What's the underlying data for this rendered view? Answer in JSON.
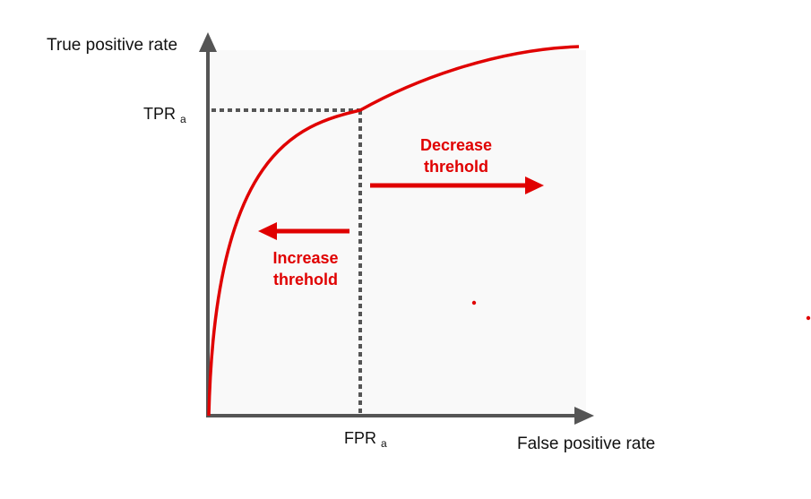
{
  "axes": {
    "y_label": "True positive rate",
    "x_label": "False positive rate"
  },
  "markers": {
    "tpr_main": "TPR",
    "tpr_sub": "a",
    "fpr_main": "FPR",
    "fpr_sub": "a"
  },
  "annotations": {
    "decrease_line1": "Decrease",
    "decrease_line2": "threhold",
    "increase_line1": "Increase",
    "increase_line2": "threhold"
  },
  "colors": {
    "curve": "#e00000",
    "axis": "#555555",
    "dotted": "#555555",
    "plot_bg": "#f9f9f9"
  }
}
